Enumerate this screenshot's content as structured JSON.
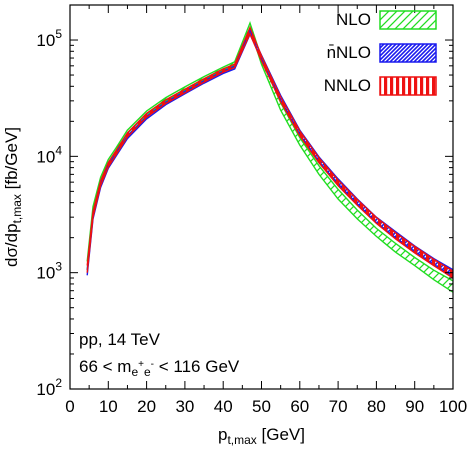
{
  "chart_data": {
    "type": "line",
    "xlabel": "p_{t,max} [GeV]",
    "xlabel_parts": {
      "main": "p",
      "sub": "t,max",
      "unit": " [GeV]"
    },
    "ylabel": "dσ/dp_{t,max} [fb/GeV]",
    "ylabel_parts": {
      "pre": "dσ/dp",
      "sub": "t,max",
      "unit": " [fb/GeV]"
    },
    "xlim": [
      0,
      100
    ],
    "ylim": [
      100,
      200000
    ],
    "yscale": "log",
    "x_ticks": [
      0,
      10,
      20,
      30,
      40,
      50,
      60,
      70,
      80,
      90,
      100
    ],
    "x_tick_labels": [
      "0",
      "10",
      "20",
      "30",
      "40",
      "50",
      "60",
      "70",
      "80",
      "90",
      "100"
    ],
    "y_ticks": [
      100,
      1000,
      10000,
      100000
    ],
    "y_tick_labels": [
      {
        "base": "10",
        "exp": "2"
      },
      {
        "base": "10",
        "exp": "3"
      },
      {
        "base": "10",
        "exp": "4"
      },
      {
        "base": "10",
        "exp": "5"
      }
    ],
    "grid": false,
    "legend_position": "top-right",
    "annotations": [
      "pp, 14 TeV",
      "66 < m_{e+e-} < 116 GeV"
    ],
    "annotation_parts": {
      "line1": "pp, 14 TeV",
      "line2_pre": "66 < m",
      "line2_sub1": "e",
      "line2_sup1": "+",
      "line2_sub2": "e",
      "line2_sup2": "-",
      "line2_post": " < 116 GeV"
    },
    "series": [
      {
        "name": "NLO",
        "legend_label": "NLO",
        "color": "#22dd22",
        "pattern": "diagonal-hatch",
        "x": [
          4.5,
          6,
          8,
          10,
          12,
          15,
          20,
          25,
          30,
          35,
          40,
          43,
          47,
          50,
          55,
          60,
          65,
          70,
          75,
          80,
          85,
          90,
          95,
          100
        ],
        "lower": [
          1050,
          3300,
          6100,
          8800,
          11000,
          15800,
          23000,
          30000,
          37000,
          45500,
          55000,
          61000,
          125000,
          62000,
          25000,
          12500,
          7000,
          4300,
          2900,
          2050,
          1500,
          1150,
          870,
          680
        ],
        "upper": [
          1250,
          3700,
          6600,
          9400,
          11800,
          16800,
          24500,
          32000,
          39500,
          48500,
          58500,
          65000,
          140000,
          70000,
          29000,
          14500,
          8300,
          5200,
          3450,
          2400,
          1780,
          1350,
          1050,
          850
        ]
      },
      {
        "name": "n̄NLO",
        "legend_label": "n̄NLO",
        "color": "#1a1aee",
        "pattern": "dense-diagonal-hatch",
        "x": [
          4.5,
          6,
          8,
          10,
          12,
          15,
          20,
          25,
          30,
          35,
          40,
          43,
          47,
          50,
          55,
          60,
          65,
          70,
          75,
          80,
          85,
          90,
          95,
          100
        ],
        "lower": [
          950,
          2900,
          5400,
          7900,
          10000,
          14200,
          21000,
          27800,
          34500,
          42500,
          51500,
          56500,
          112000,
          68000,
          30500,
          15400,
          9000,
          5800,
          3900,
          2700,
          2000,
          1520,
          1180,
          930
        ],
        "upper": [
          1050,
          3150,
          5800,
          8400,
          10600,
          15000,
          22200,
          29200,
          36200,
          44500,
          54000,
          59500,
          120000,
          74000,
          33500,
          16800,
          9900,
          6400,
          4300,
          3000,
          2250,
          1700,
          1320,
          1060
        ]
      },
      {
        "name": "NNLO",
        "legend_label": "NNLO",
        "color": "#ee1111",
        "pattern": "vertical-stripes",
        "x": [
          4.5,
          6,
          8,
          10,
          12,
          15,
          20,
          25,
          30,
          35,
          40,
          43,
          47,
          50,
          55,
          60,
          65,
          70,
          75,
          80,
          85,
          90,
          95,
          100
        ],
        "lower": [
          1000,
          3000,
          5600,
          8100,
          10300,
          14700,
          21700,
          28500,
          35200,
          43500,
          53000,
          58000,
          113000,
          66000,
          29500,
          15000,
          8800,
          5600,
          3800,
          2650,
          1950,
          1480,
          1150,
          900
        ],
        "upper": [
          1150,
          3350,
          6150,
          8850,
          11200,
          15900,
          23400,
          30600,
          37800,
          46500,
          56500,
          62000,
          128000,
          73000,
          32500,
          16500,
          9700,
          6250,
          4250,
          2980,
          2200,
          1680,
          1300,
          1030
        ]
      }
    ]
  }
}
